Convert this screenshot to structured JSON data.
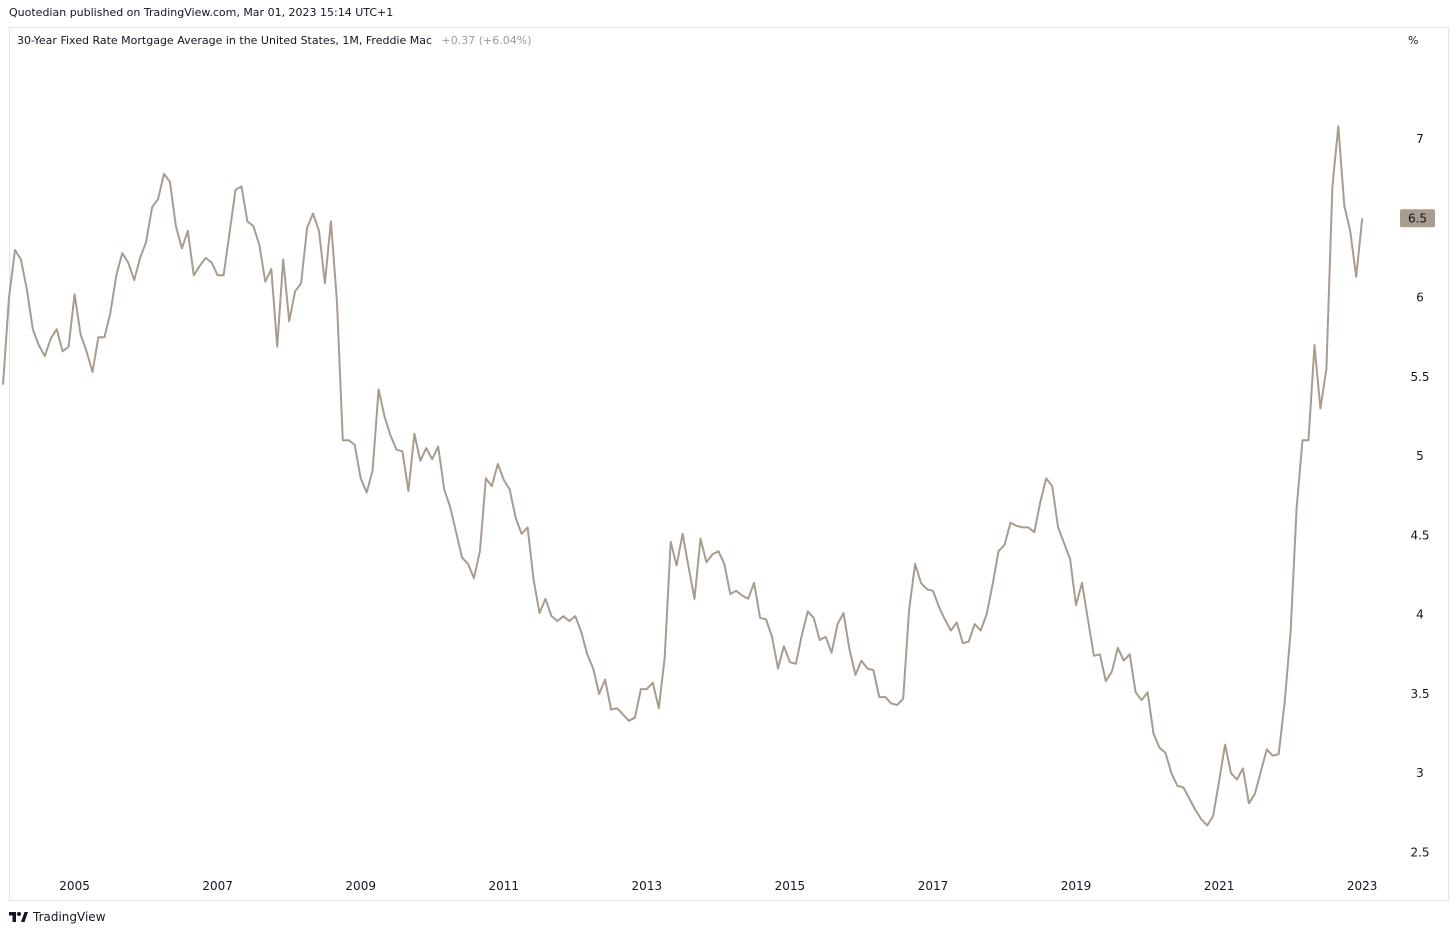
{
  "publish_line": "Quotedian published on TradingView.com, Mar 01, 2023 15:14 UTC+1",
  "legend": {
    "title": "30-Year Fixed Rate Mortgage Average in the United States, 1M, Freddie Mac",
    "change": "+0.37 (+6.04%)"
  },
  "unit": "%",
  "footer": {
    "brand": "TradingView",
    "logo_icon": "tradingview-logo-icon"
  },
  "colors": {
    "line": "#a89c8e",
    "price_label_bg": "#a89c8e",
    "frame": "#e0e3eb"
  },
  "chart_data": {
    "type": "line",
    "title": "30-Year Fixed Rate Mortgage Average in the United States, 1M, Freddie Mac",
    "xlabel": "",
    "ylabel": "%",
    "xlim": [
      "2004-02",
      "2023-05"
    ],
    "ylim": [
      2.2,
      7.7
    ],
    "grid": false,
    "y_axis_side": "right",
    "x_ticks": [
      "2005",
      "2007",
      "2009",
      "2011",
      "2013",
      "2015",
      "2017",
      "2019",
      "2021",
      "2023"
    ],
    "y_ticks": [
      "2.5",
      "3",
      "3.5",
      "4",
      "4.5",
      "5",
      "5.5",
      "6",
      "6.5",
      "7"
    ],
    "last_value_label": "6.5",
    "series": [
      {
        "start": "2004-01",
        "frequency": "monthly",
        "values": [
          5.45,
          6.0,
          6.3,
          6.24,
          6.05,
          5.8,
          5.7,
          5.63,
          5.74,
          5.8,
          5.66,
          5.69,
          6.02,
          5.77,
          5.66,
          5.53,
          5.75,
          5.75,
          5.9,
          6.14,
          6.28,
          6.22,
          6.11,
          6.25,
          6.35,
          6.57,
          6.62,
          6.78,
          6.73,
          6.45,
          6.31,
          6.42,
          6.14,
          6.2,
          6.25,
          6.22,
          6.14,
          6.14,
          6.41,
          6.68,
          6.7,
          6.48,
          6.45,
          6.33,
          6.1,
          6.18,
          5.69,
          6.24,
          5.85,
          6.04,
          6.09,
          6.44,
          6.53,
          6.42,
          6.09,
          6.48,
          5.98,
          5.1,
          5.1,
          5.07,
          4.86,
          4.77,
          4.91,
          5.42,
          5.25,
          5.13,
          5.04,
          5.03,
          4.78,
          5.14,
          4.97,
          5.05,
          4.98,
          5.06,
          4.79,
          4.68,
          4.52,
          4.36,
          4.32,
          4.23,
          4.4,
          4.86,
          4.81,
          4.95,
          4.85,
          4.79,
          4.61,
          4.51,
          4.55,
          4.22,
          4.01,
          4.1,
          3.99,
          3.96,
          3.99,
          3.96,
          3.99,
          3.89,
          3.75,
          3.66,
          3.5,
          3.59,
          3.4,
          3.41,
          3.37,
          3.33,
          3.35,
          3.53,
          3.53,
          3.57,
          3.41,
          3.73,
          4.46,
          4.31,
          4.51,
          4.3,
          4.1,
          4.48,
          4.33,
          4.38,
          4.4,
          4.32,
          4.13,
          4.15,
          4.12,
          4.1,
          4.2,
          3.98,
          3.97,
          3.86,
          3.66,
          3.8,
          3.7,
          3.69,
          3.87,
          4.02,
          3.98,
          3.84,
          3.86,
          3.76,
          3.94,
          4.01,
          3.78,
          3.62,
          3.71,
          3.66,
          3.65,
          3.48,
          3.48,
          3.44,
          3.43,
          3.47,
          4.03,
          4.32,
          4.2,
          4.16,
          4.15,
          4.05,
          3.97,
          3.9,
          3.95,
          3.82,
          3.83,
          3.94,
          3.9,
          4.0,
          4.19,
          4.4,
          4.44,
          4.58,
          4.56,
          4.55,
          4.55,
          4.52,
          4.71,
          4.86,
          4.81,
          4.55,
          4.45,
          4.35,
          4.06,
          4.2,
          3.97,
          3.74,
          3.75,
          3.58,
          3.64,
          3.79,
          3.71,
          3.75,
          3.51,
          3.46,
          3.51,
          3.25,
          3.16,
          3.13,
          3.0,
          2.92,
          2.91,
          2.84,
          2.77,
          2.71,
          2.67,
          2.73,
          2.95,
          3.18,
          3.0,
          2.96,
          3.03,
          2.81,
          2.87,
          3.01,
          3.15,
          3.11,
          3.12,
          3.45,
          3.89,
          4.67,
          5.1,
          5.1,
          5.7,
          5.3,
          5.55,
          6.7,
          7.08,
          6.58,
          6.42,
          6.13,
          6.5
        ]
      }
    ]
  }
}
